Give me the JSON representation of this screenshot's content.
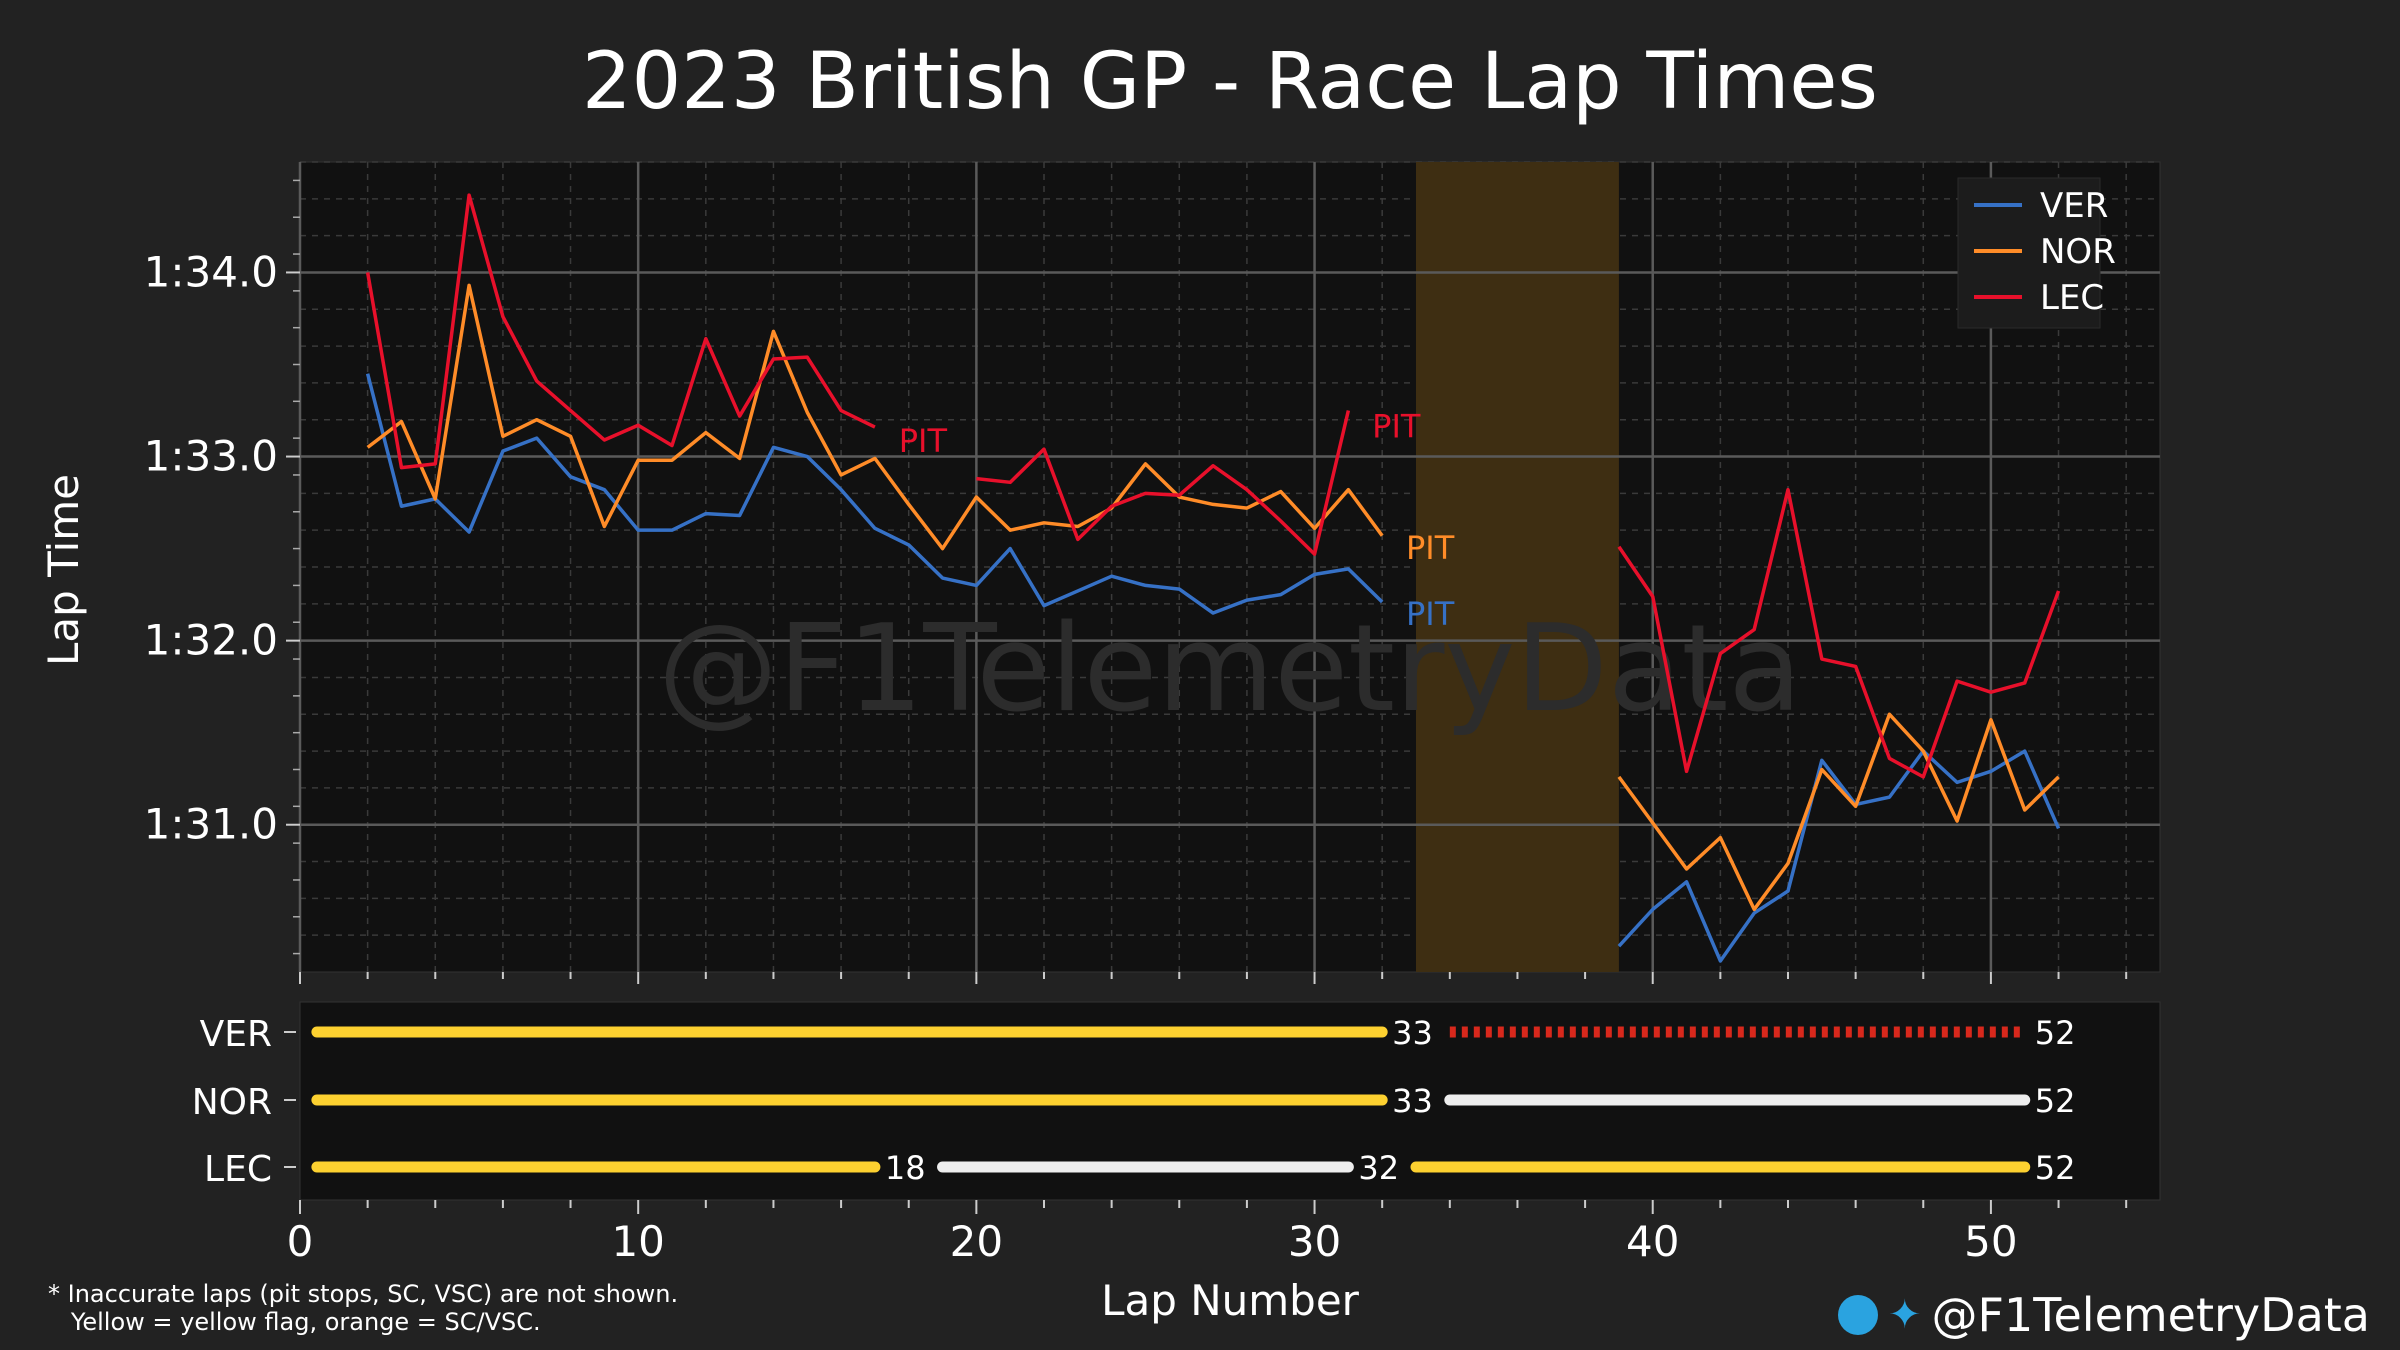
{
  "title": "2023 British GP - Race Lap Times",
  "watermark": "@F1TelemetryData",
  "footnote_line1": "* Inaccurate laps (pit stops, SC, VSC) are not shown.",
  "footnote_line2": "   Yellow = yellow flag, orange = SC/VSC.",
  "credit": "@F1TelemetryData",
  "icons": {
    "telegram": "telegram-icon",
    "twitter": "twitter-icon"
  },
  "colors": {
    "VER": "#3671c6",
    "NOR": "#ff8c28",
    "LEC": "#e8102b",
    "sc_band": "#3e2e12",
    "medium_tyre": "#fdd130",
    "hard_tyre": "#eeeeee",
    "inter_marker": "#d8281c"
  },
  "chart_data": {
    "type": "line",
    "xlabel": "Lap Number",
    "ylabel": "Lap Time",
    "xlim": [
      0,
      55
    ],
    "ylim": [
      90.2,
      94.6
    ],
    "x_ticks": [
      0,
      10,
      20,
      30,
      40,
      50
    ],
    "y_ticks": [
      91,
      92,
      93,
      94
    ],
    "y_tick_labels": [
      "1:31.0",
      "1:32.0",
      "1:33.0",
      "1:34.0"
    ],
    "grid": true,
    "legend_position": "top-right",
    "sc_band": {
      "start_lap": 33,
      "end_lap": 39
    },
    "series": [
      {
        "name": "VER",
        "segments": [
          {
            "x": [
              2,
              3,
              4,
              5,
              6,
              7,
              8,
              9,
              10,
              11,
              12,
              13,
              14,
              15,
              16,
              17,
              18,
              19,
              20,
              21,
              22,
              23,
              24,
              25,
              26,
              27,
              28,
              29,
              30,
              31,
              32
            ],
            "y": [
              93.45,
              92.73,
              92.77,
              92.59,
              93.03,
              93.1,
              92.89,
              92.82,
              92.6,
              92.6,
              92.69,
              92.68,
              93.05,
              93.0,
              92.82,
              92.61,
              92.52,
              92.34,
              92.3,
              92.5,
              92.19,
              92.27,
              92.35,
              92.3,
              92.28,
              92.15,
              92.22,
              92.25,
              92.36,
              92.39,
              92.21
            ]
          },
          {
            "x": [
              39,
              40,
              41,
              42,
              43,
              44,
              45,
              46,
              47,
              48,
              49,
              50,
              51,
              52
            ],
            "y": [
              90.34,
              90.54,
              90.69,
              90.26,
              90.52,
              90.64,
              91.35,
              91.11,
              91.15,
              91.4,
              91.23,
              91.29,
              91.4,
              90.98
            ]
          }
        ],
        "pit_label": "PIT",
        "pit_label_lap": 33,
        "pit_label_time": 92.15
      },
      {
        "name": "NOR",
        "segments": [
          {
            "x": [
              2,
              3,
              4,
              5,
              6,
              7,
              8,
              9,
              10,
              11,
              12,
              13,
              14,
              15,
              16,
              17,
              18,
              19,
              20,
              21,
              22,
              23,
              24,
              25,
              26,
              27,
              28,
              29,
              30,
              31,
              32
            ],
            "y": [
              93.05,
              93.19,
              92.77,
              93.93,
              93.11,
              93.2,
              93.11,
              92.62,
              92.98,
              92.98,
              93.13,
              92.99,
              93.68,
              93.24,
              92.9,
              92.99,
              92.74,
              92.5,
              92.78,
              92.6,
              92.64,
              92.62,
              92.72,
              92.96,
              92.78,
              92.74,
              92.72,
              92.81,
              92.61,
              92.82,
              92.57
            ]
          },
          {
            "x": [
              39,
              40,
              41,
              42,
              43,
              44,
              45,
              46,
              47,
              48,
              49,
              50,
              51,
              52
            ],
            "y": [
              91.26,
              91.01,
              90.76,
              90.93,
              90.54,
              90.79,
              91.3,
              91.1,
              91.6,
              91.4,
              91.02,
              91.57,
              91.08,
              91.26
            ]
          }
        ],
        "pit_label": "PIT",
        "pit_label_lap": 33,
        "pit_label_time": 92.51
      },
      {
        "name": "LEC",
        "segments": [
          {
            "x": [
              2,
              3,
              4,
              5,
              6,
              7,
              8,
              9,
              10,
              11,
              12,
              13,
              14,
              15,
              16,
              17
            ],
            "y": [
              94.0,
              92.94,
              92.96,
              94.42,
              93.76,
              93.41,
              93.25,
              93.09,
              93.17,
              93.06,
              93.64,
              93.22,
              93.53,
              93.54,
              93.25,
              93.16
            ]
          },
          {
            "x": [
              20,
              21,
              22,
              23,
              24,
              25,
              26,
              27,
              28,
              29,
              30,
              31
            ],
            "y": [
              92.88,
              92.86,
              93.04,
              92.55,
              92.73,
              92.8,
              92.79,
              92.95,
              92.82,
              92.65,
              92.47,
              93.25
            ]
          },
          {
            "x": [
              39,
              40,
              41,
              42,
              43,
              44,
              45,
              46,
              47,
              48,
              49,
              50,
              51,
              52
            ],
            "y": [
              92.51,
              92.24,
              91.29,
              91.93,
              92.06,
              92.82,
              91.9,
              91.86,
              91.36,
              91.26,
              91.78,
              91.72,
              91.77,
              92.27
            ]
          }
        ],
        "pit_labels": [
          {
            "text": "PIT",
            "lap": 18,
            "time": 93.09
          },
          {
            "text": "PIT",
            "lap": 32,
            "time": 93.17
          }
        ]
      }
    ],
    "stints": {
      "drivers": [
        "VER",
        "NOR",
        "LEC"
      ],
      "rows": [
        {
          "driver": "VER",
          "stints": [
            {
              "start": 0.5,
              "end": 32,
              "compound": "medium",
              "end_label": "33"
            },
            {
              "start": 34,
              "end": 51,
              "compound": "inter_marker",
              "end_label": "52"
            }
          ]
        },
        {
          "driver": "NOR",
          "stints": [
            {
              "start": 0.5,
              "end": 32,
              "compound": "medium",
              "end_label": "33"
            },
            {
              "start": 34,
              "end": 51,
              "compound": "hard",
              "end_label": "52"
            }
          ]
        },
        {
          "driver": "LEC",
          "stints": [
            {
              "start": 0.5,
              "end": 17,
              "compound": "medium",
              "end_label": "18"
            },
            {
              "start": 19,
              "end": 31,
              "compound": "hard",
              "end_label": "32"
            },
            {
              "start": 33,
              "end": 51,
              "compound": "medium",
              "end_label": "52"
            }
          ]
        }
      ]
    }
  }
}
